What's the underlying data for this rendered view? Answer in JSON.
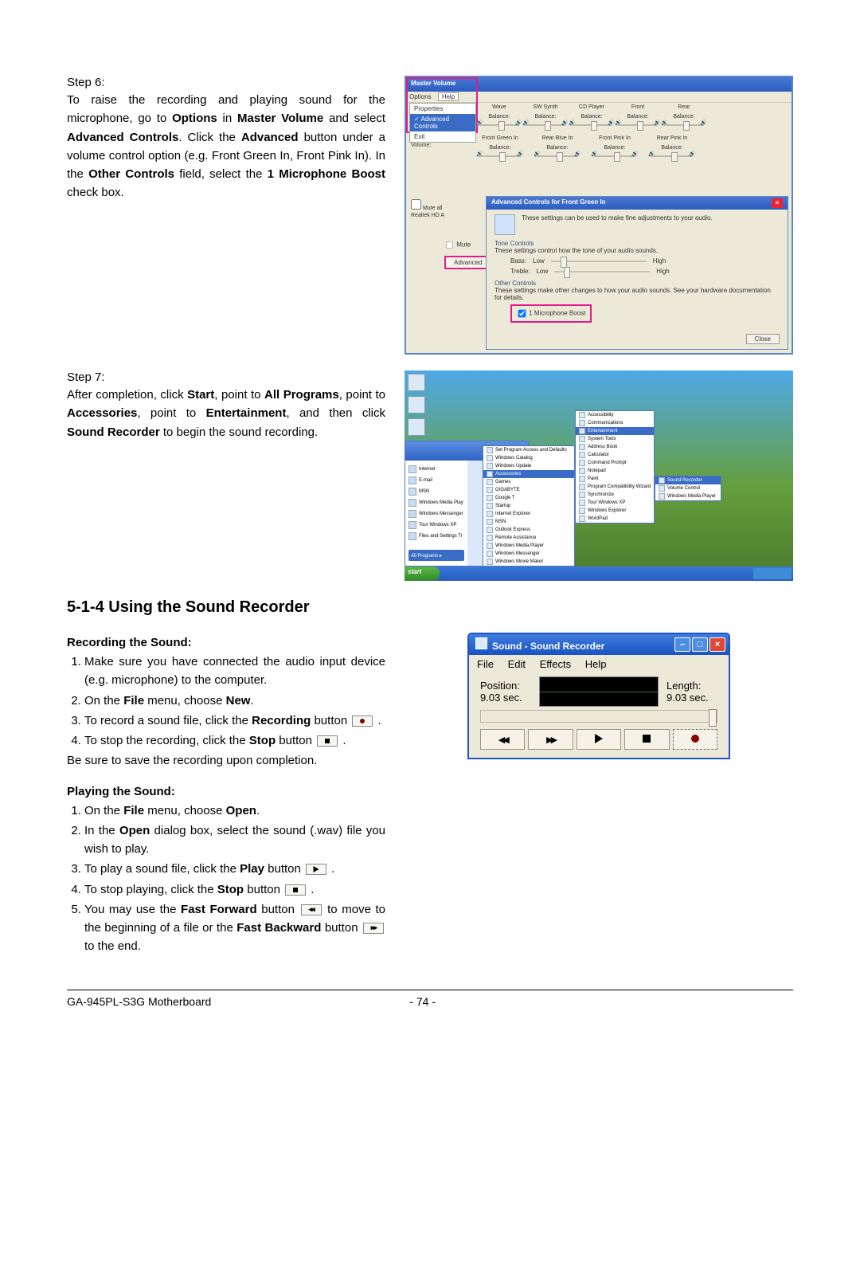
{
  "step6": {
    "label": "Step 6:",
    "text_parts": [
      "To raise the recording and playing sound for the microphone, go to ",
      "Options",
      " in ",
      "Master Volume",
      " and select ",
      "Advanced Controls",
      ". Click the ",
      "Advanced",
      " button under a volume control option (e.g. Front Green In, Front Pink In). In the ",
      "Other Controls",
      " field, select the ",
      "1 Microphone Boost",
      " check box."
    ]
  },
  "step7": {
    "label": "Step 7:",
    "text_parts": [
      "After completion, click ",
      "Start",
      ", point to ",
      "All Programs",
      ", point to ",
      "Accessories",
      ", point to ",
      "Entertainment",
      ", and then click ",
      "Sound Recorder",
      " to begin the sound recording."
    ]
  },
  "section_heading": "5-1-4   Using the Sound Recorder",
  "recording": {
    "heading": "Recording the Sound:",
    "items": [
      "Make sure you have connected the audio input device (e.g. microphone) to the computer.",
      [
        "On the ",
        "File",
        " menu, choose ",
        "New",
        "."
      ],
      [
        "To record a sound file, click the ",
        "Recording",
        " button "
      ],
      [
        "To stop the recording, click the ",
        "Stop",
        " button "
      ]
    ],
    "tail": "Be sure to save the recording upon completion."
  },
  "playing": {
    "heading": "Playing the Sound:",
    "items": [
      [
        "On the ",
        "File",
        " menu, choose ",
        "Open",
        "."
      ],
      [
        "In the ",
        "Open",
        " dialog box, select the sound (.wav) file you wish to play."
      ],
      [
        "To play a sound file, click the ",
        "Play",
        " button "
      ],
      [
        "To stop playing, click the ",
        "Stop",
        " button "
      ],
      [
        "You may use the ",
        "Fast Forward",
        " button ",
        " to move to the beginning of a file or the ",
        "Fast Backward",
        " button ",
        " to the end."
      ]
    ]
  },
  "master_volume": {
    "window_title": "Master Volume",
    "menu_options": "Options",
    "menu_help": "Help",
    "dropdown": {
      "properties": "Properties",
      "advanced": "Advanced Controls",
      "exit": "Exit"
    },
    "channels_row1": [
      "Wave",
      "SW Synth",
      "CD Player",
      "Front",
      "Rear"
    ],
    "balance_label": "Balance:",
    "volume_label": "Volume:",
    "channels_row2": [
      "Front Green In",
      "Rear Blue In",
      "Front Pink In",
      "Rear Pink In"
    ],
    "mute_all": "Mute all",
    "realtek": "Realtek HD A",
    "mute": "Mute",
    "advanced_button": "Advanced",
    "dialog": {
      "title": "Advanced Controls for Front Green In",
      "info_text": "These settings can be used to make fine adjustments to your audio.",
      "tone_heading": "Tone Controls",
      "tone_text": "These settings control how the tone of your audio sounds.",
      "bass": "Bass:",
      "treble": "Treble:",
      "low": "Low",
      "high": "High",
      "other_heading": "Other Controls",
      "other_text": "These settings make other changes to how your audio sounds. See your hardware documentation for details.",
      "mic_boost": "1 Microphone Boost",
      "close": "Close"
    }
  },
  "xp": {
    "start_label": "start",
    "left_items": [
      "Internet",
      "E-mail",
      "MSN",
      "Windows Media Play",
      "Windows Messenger",
      "Tour Windows XP",
      "Files and Settings Tr"
    ],
    "all_programs": "All Programs",
    "sub1": [
      "Set Program Access and Defaults",
      "Windows Catalog",
      "Windows Update",
      "Accessories",
      "Games",
      "GIGABYTE",
      "Google T",
      "Startup",
      "Internet Explorer",
      "MSN",
      "Outlook Express",
      "Remote Assistance",
      "Windows Media Player",
      "Windows Messenger",
      "Windows Movie Maker"
    ],
    "sub1_highlight": "Accessories",
    "sub2": [
      "Accessibility",
      "Communications",
      "Entertainment",
      "System Tools",
      "Address Book",
      "Calculator",
      "Command Prompt",
      "Notepad",
      "Paint",
      "Program Compatibility Wizard",
      "Synchronize",
      "Tour Windows XP",
      "Windows Explorer",
      "WordPad"
    ],
    "sub2_highlight": "Entertainment",
    "sub3": [
      "Sound Recorder",
      "Volume Control",
      "Windows Media Player"
    ],
    "sub3_highlight": "Sound Recorder"
  },
  "sound_recorder": {
    "title": "Sound - Sound Recorder",
    "menus": [
      "File",
      "Edit",
      "Effects",
      "Help"
    ],
    "position_label": "Position:",
    "position_value": "9.03 sec.",
    "length_label": "Length:",
    "length_value": "9.03 sec."
  },
  "footer": {
    "model": "GA-945PL-S3G Motherboard",
    "page": "- 74 -"
  },
  "colors": {
    "xp_blue": "#2b5cbf",
    "xp_blue_light": "#4a79d4",
    "xp_panel": "#ece9d8",
    "highlight_pink": "#e21b8b",
    "close_red": "#e04836"
  }
}
